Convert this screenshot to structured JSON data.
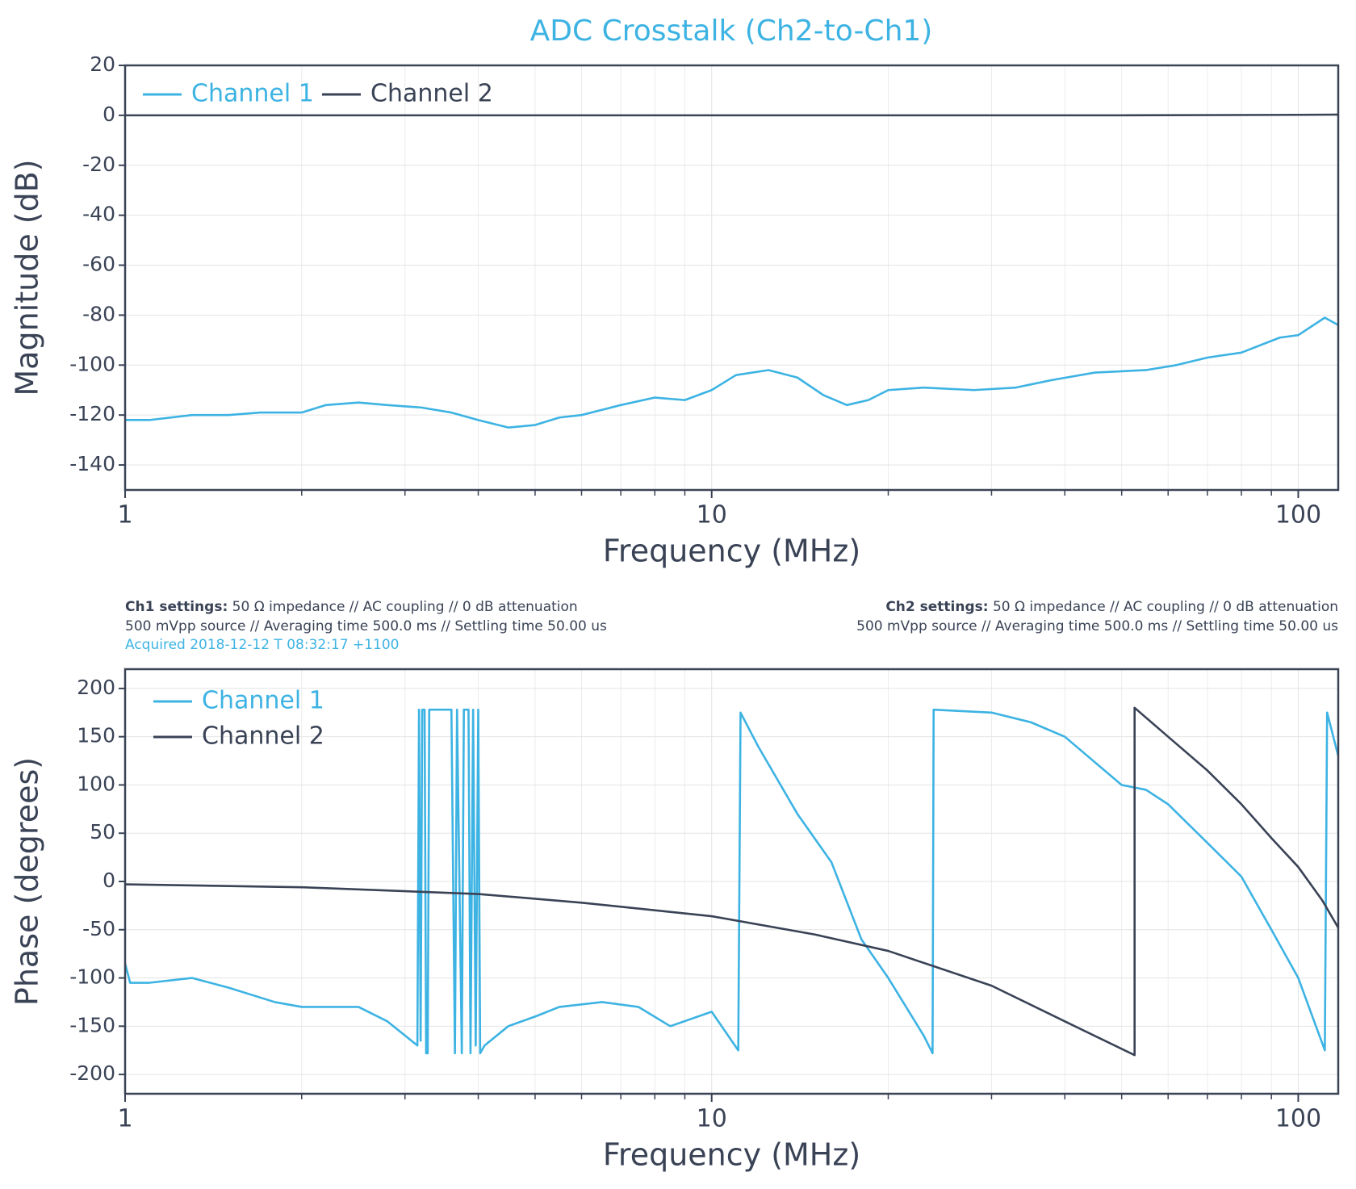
{
  "chart_data": [
    {
      "type": "line",
      "title": "ADC Crosstalk (Ch2-to-Ch1)",
      "xlabel": "Frequency (MHz)",
      "ylabel": "Magnitude (dB)",
      "xscale": "log",
      "xlim": [
        1,
        117
      ],
      "xticks": [
        1,
        10,
        100
      ],
      "ylim": [
        -150,
        20
      ],
      "yticks": [
        -140,
        -120,
        -100,
        -80,
        -60,
        -40,
        -20,
        0,
        20
      ],
      "grid": true,
      "legend": "upper left",
      "legend_columns": 2,
      "series": [
        {
          "name": "Channel 1",
          "color": "#3db3e3",
          "x": [
            1,
            1.1,
            1.3,
            1.5,
            1.7,
            2,
            2.2,
            2.5,
            2.8,
            3.2,
            3.6,
            4,
            4.5,
            5,
            5.5,
            6,
            7,
            8,
            9,
            10,
            11,
            12.5,
            14,
            15.5,
            17,
            18.5,
            20,
            23,
            28,
            33,
            38,
            45,
            55,
            62,
            70,
            80,
            93,
            100,
            111,
            117
          ],
          "values": [
            -122,
            -122,
            -120,
            -120,
            -119,
            -119,
            -116,
            -115,
            -116,
            -117,
            -119,
            -122,
            -125,
            -124,
            -121,
            -120,
            -116,
            -113,
            -114,
            -110,
            -104,
            -102,
            -105,
            -112,
            -116,
            -114,
            -110,
            -109,
            -110,
            -109,
            -106,
            -103,
            -102,
            -100,
            -97,
            -95,
            -89,
            -88,
            -81,
            -84
          ]
        },
        {
          "name": "Channel 2",
          "color": "#3a4356",
          "x": [
            1,
            10,
            50,
            100,
            117
          ],
          "values": [
            0,
            0,
            0,
            0.2,
            0.3
          ]
        }
      ]
    },
    {
      "type": "line",
      "xlabel": "Frequency (MHz)",
      "ylabel": "Phase (degrees)",
      "xscale": "log",
      "xlim": [
        1,
        117
      ],
      "xticks": [
        1,
        10,
        100
      ],
      "ylim": [
        -220,
        220
      ],
      "yticks": [
        -200,
        -150,
        -100,
        -50,
        0,
        50,
        100,
        150,
        200
      ],
      "grid": true,
      "legend": "upper left",
      "legend_columns": 1,
      "series": [
        {
          "name": "Channel 1",
          "color": "#3db3e3",
          "x": [
            1,
            1.02,
            1.1,
            1.3,
            1.5,
            1.8,
            2,
            2.5,
            2.8,
            3.15,
            3.17,
            3.19,
            3.21,
            3.24,
            3.26,
            3.28,
            3.3,
            3.6,
            3.65,
            3.68,
            3.75,
            3.78,
            3.85,
            3.88,
            3.92,
            3.96,
            4,
            4.03,
            4.1,
            4.5,
            5,
            5.5,
            6.5,
            7.5,
            8.5,
            10,
            11.1,
            11.2,
            12,
            14,
            16,
            18,
            20,
            23,
            23.8,
            23.9,
            30,
            35,
            40,
            50,
            55,
            60,
            70,
            80,
            90,
            100,
            111,
            112,
            117
          ],
          "values": [
            -85,
            -105,
            -105,
            -100,
            -110,
            -125,
            -130,
            -130,
            -145,
            -170,
            178,
            -165,
            178,
            178,
            -178,
            -178,
            178,
            178,
            -178,
            178,
            -178,
            178,
            178,
            -178,
            178,
            -170,
            178,
            -178,
            -170,
            -150,
            -140,
            -130,
            -125,
            -130,
            -150,
            -135,
            -175,
            175,
            140,
            70,
            20,
            -60,
            -100,
            -160,
            -178,
            178,
            175,
            165,
            150,
            100,
            95,
            80,
            40,
            5,
            -50,
            -100,
            -175,
            175,
            130
          ]
        },
        {
          "name": "Channel 2",
          "color": "#3a4356",
          "x": [
            1,
            2,
            4,
            6,
            10,
            15,
            20,
            30,
            40,
            52.6,
            52.6,
            60,
            70,
            80,
            90,
            100,
            110,
            117
          ],
          "values": [
            -3,
            -6,
            -13,
            -22,
            -36,
            -55,
            -72,
            -108,
            -145,
            -180,
            180,
            150,
            115,
            80,
            45,
            15,
            -20,
            -48
          ]
        }
      ]
    }
  ],
  "settings": {
    "ch1": {
      "label": "Ch1 settings:",
      "line1": "50 Ω impedance  //  AC coupling  //  0 dB attenuation",
      "line2": "500 mVpp source  //  Averaging time 500.0 ms  //  Settling time 50.00 us",
      "acquired": "Acquired 2018-12-12 T 08:32:17 +1100"
    },
    "ch2": {
      "label": "Ch2 settings:",
      "line1": "50 Ω impedance  //  AC coupling  //  0 dB attenuation",
      "line2": "500 mVpp source  //  Averaging time 500.0 ms  //  Settling time 50.00 us"
    }
  }
}
